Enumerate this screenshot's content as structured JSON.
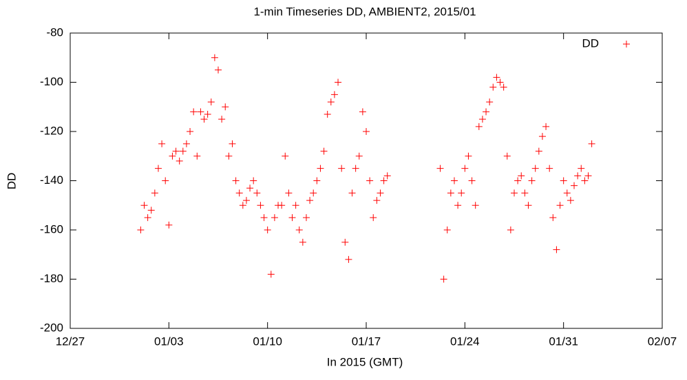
{
  "chart_data": {
    "type": "scatter",
    "title": "1-min Timeseries DD, AMBIENT2, 2015/01",
    "xlabel": "In 2015 (GMT)",
    "ylabel": "DD",
    "legend": "top-right",
    "xlim": [
      -4,
      38
    ],
    "xticks": [
      {
        "value": -4,
        "label": "12/27"
      },
      {
        "value": 3,
        "label": "01/03"
      },
      {
        "value": 10,
        "label": "01/10"
      },
      {
        "value": 17,
        "label": "01/17"
      },
      {
        "value": 24,
        "label": "01/24"
      },
      {
        "value": 31,
        "label": "01/31"
      },
      {
        "value": 38,
        "label": "02/07"
      }
    ],
    "ylim": [
      -200,
      -80
    ],
    "yticks": [
      -200,
      -180,
      -160,
      -140,
      -120,
      -100,
      -80
    ],
    "series": [
      {
        "name": "DD",
        "color": "#ff0000",
        "x": [
          1,
          1.25,
          1.5,
          1.75,
          2,
          2.25,
          2.5,
          2.75,
          3,
          3.25,
          3.5,
          3.75,
          4,
          4.25,
          4.5,
          4.75,
          5,
          5.25,
          5.5,
          5.75,
          6,
          6.25,
          6.5,
          6.75,
          7,
          7.25,
          7.5,
          7.75,
          8,
          8.25,
          8.5,
          8.75,
          9,
          9.25,
          9.5,
          9.75,
          10,
          10.25,
          10.5,
          10.75,
          11,
          11.25,
          11.5,
          11.75,
          12,
          12.25,
          12.5,
          12.75,
          13,
          13.25,
          13.5,
          13.75,
          14,
          14.25,
          14.5,
          14.75,
          15,
          15.25,
          15.5,
          15.75,
          16,
          16.25,
          16.5,
          16.75,
          17,
          17.25,
          17.5,
          17.75,
          18,
          18.25,
          18.5,
          22.25,
          22.5,
          22.75,
          23,
          23.25,
          23.5,
          23.75,
          24,
          24.25,
          24.5,
          24.75,
          25,
          25.25,
          25.5,
          25.75,
          26,
          26.25,
          26.5,
          26.75,
          27,
          27.25,
          27.5,
          27.75,
          28,
          28.25,
          28.5,
          28.75,
          29,
          29.25,
          29.5,
          29.75,
          30,
          30.25,
          30.5,
          30.75,
          31,
          31.25,
          31.5,
          31.75,
          32,
          32.25,
          32.5,
          32.75,
          33
        ],
        "values": [
          -160,
          -150,
          -155,
          -152,
          -145,
          -135,
          -125,
          -140,
          -158,
          -130,
          -128,
          -132,
          -128,
          -125,
          -120,
          -112,
          -130,
          -112,
          -115,
          -113,
          -108,
          -90,
          -95,
          -115,
          -110,
          -130,
          -125,
          -140,
          -145,
          -150,
          -148,
          -143,
          -140,
          -145,
          -150,
          -155,
          -160,
          -178,
          -155,
          -150,
          -150,
          -130,
          -145,
          -155,
          -150,
          -160,
          -165,
          -155,
          -148,
          -145,
          -140,
          -135,
          -128,
          -113,
          -108,
          -105,
          -100,
          -135,
          -165,
          -172,
          -145,
          -135,
          -130,
          -112,
          -120,
          -140,
          -155,
          -148,
          -145,
          -140,
          -138,
          -135,
          -180,
          -160,
          -145,
          -140,
          -150,
          -145,
          -135,
          -130,
          -140,
          -150,
          -118,
          -115,
          -112,
          -108,
          -102,
          -98,
          -100,
          -102,
          -130,
          -160,
          -145,
          -140,
          -138,
          -145,
          -150,
          -140,
          -135,
          -128,
          -122,
          -118,
          -135,
          -155,
          -168,
          -150,
          -140,
          -145,
          -148,
          -142,
          -138,
          -135,
          -140,
          -138,
          -125
        ]
      }
    ]
  }
}
